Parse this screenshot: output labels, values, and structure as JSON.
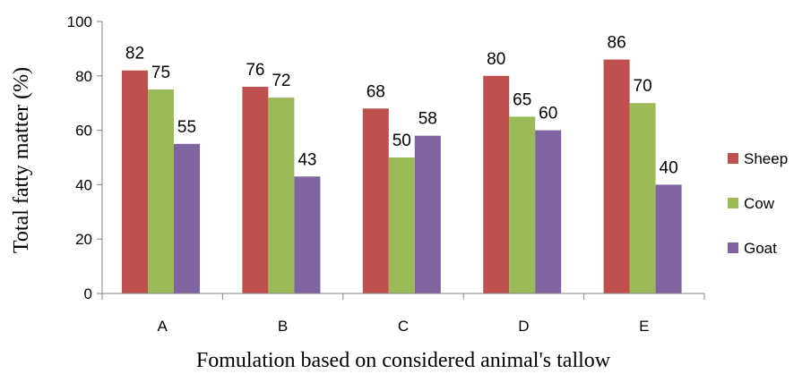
{
  "chart_data": {
    "type": "bar",
    "categories": [
      "A",
      "B",
      "C",
      "D",
      "E"
    ],
    "series": [
      {
        "name": "Sheep",
        "values": [
          82,
          76,
          68,
          80,
          86
        ],
        "color": "#c0504d"
      },
      {
        "name": "Cow",
        "values": [
          75,
          72,
          50,
          65,
          70
        ],
        "color": "#9bbb59"
      },
      {
        "name": "Goat",
        "values": [
          55,
          43,
          58,
          60,
          40
        ],
        "color": "#8064a2"
      }
    ],
    "title": "",
    "xlabel": "Fomulation based on considered animal's tallow",
    "ylabel": "Total fatty matter (%)",
    "ylim": [
      0,
      100
    ],
    "yticks": [
      0,
      20,
      40,
      60,
      80,
      100
    ],
    "grid": false,
    "legend": "right"
  }
}
